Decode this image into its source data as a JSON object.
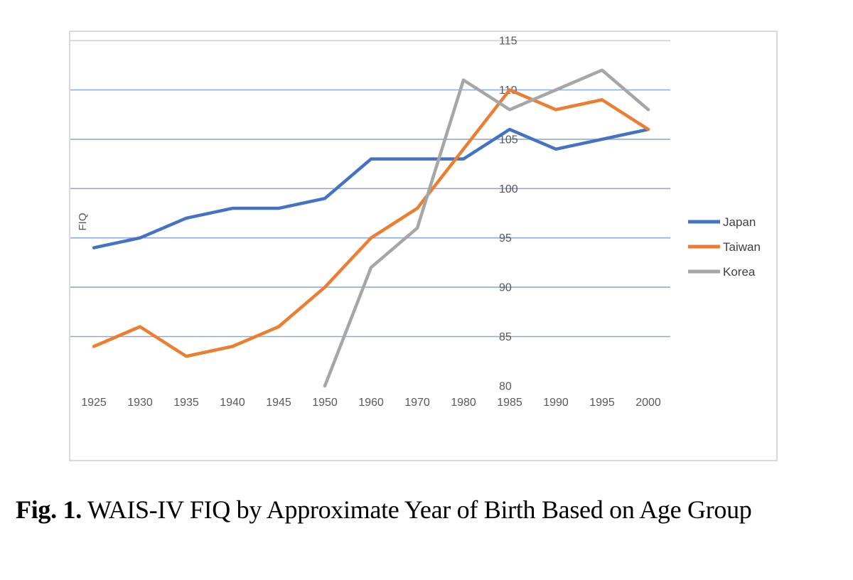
{
  "figure_caption": {
    "prefix": "Fig. 1.",
    "text": " WAIS-IV FIQ by Approximate Year of Birth Based on Age Group"
  },
  "chart_data": {
    "type": "line",
    "title": "",
    "xlabel": "",
    "ylabel": "FIQ",
    "categories": [
      "1925",
      "1930",
      "1935",
      "1940",
      "1945",
      "1950",
      "1960",
      "1970",
      "1980",
      "1985",
      "1990",
      "1995",
      "2000"
    ],
    "series": [
      {
        "name": "Japan",
        "color": "#4472C4",
        "values": [
          94,
          95,
          97,
          98,
          98,
          99,
          103,
          103,
          103,
          106,
          104,
          105,
          106
        ]
      },
      {
        "name": "Taiwan",
        "color": "#ED7D31",
        "values": [
          84,
          86,
          83,
          84,
          86,
          90,
          95,
          98,
          104,
          110,
          108,
          109,
          106
        ]
      },
      {
        "name": "Korea",
        "color": "#A6A6A6",
        "values": [
          null,
          null,
          null,
          null,
          null,
          80,
          92,
          96,
          111,
          108,
          110,
          112,
          108
        ]
      }
    ],
    "ylim": [
      80,
      115
    ],
    "yticks": [
      80,
      85,
      90,
      95,
      100,
      105,
      110,
      115
    ],
    "grid": true,
    "gridline_note": "horizontal gridlines for 85-115; 115 line is gray, others blue; no line at 80",
    "legend_position": "right",
    "legend_labels": [
      "Japan",
      "Taiwan",
      "Korea"
    ],
    "colors": {
      "gridline": "#8EAADB",
      "top_gridline": "#D9D9D9",
      "axis_text": "#595959",
      "legend_text": "#404040",
      "chart_border": "#D9D9D9",
      "background": "#FFFFFF"
    }
  }
}
